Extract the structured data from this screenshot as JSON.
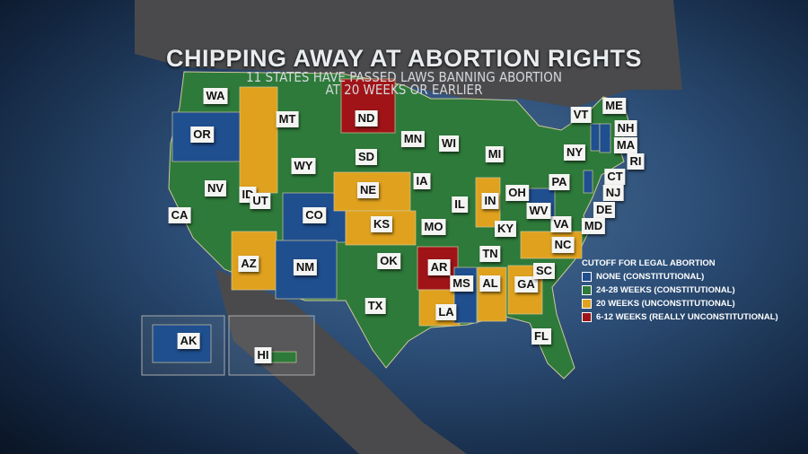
{
  "title": "CHIPPING AWAY AT ABORTION RIGHTS",
  "subtitle_lines": [
    "11 STATES HAVE PASSED LAWS BANNING ABORTION",
    "AT 20 WEEKS OR EARLIER"
  ],
  "legend": {
    "title": "CUTOFF FOR LEGAL ABORTION",
    "items": [
      {
        "key": "none",
        "label": "NONE (CONSTITUTIONAL)",
        "color": "#1f4f8f"
      },
      {
        "key": "w24",
        "label": "24-28 WEEKS (CONSTITUTIONAL)",
        "color": "#2e7a3a"
      },
      {
        "key": "w20",
        "label": "20 WEEKS (UNCONSTITUTIONAL)",
        "color": "#e0a21e"
      },
      {
        "key": "w6",
        "label": "6-12 WEEKS (REALLY UNCONSTITUTIONAL)",
        "color": "#a01418"
      }
    ]
  },
  "states": [
    {
      "abbr": "WA",
      "cat": "w24"
    },
    {
      "abbr": "OR",
      "cat": "none"
    },
    {
      "abbr": "CA",
      "cat": "w24"
    },
    {
      "abbr": "NV",
      "cat": "w24"
    },
    {
      "abbr": "ID",
      "cat": "w20"
    },
    {
      "abbr": "MT",
      "cat": "w24"
    },
    {
      "abbr": "WY",
      "cat": "w24"
    },
    {
      "abbr": "UT",
      "cat": "w24"
    },
    {
      "abbr": "AZ",
      "cat": "w20"
    },
    {
      "abbr": "CO",
      "cat": "none"
    },
    {
      "abbr": "NM",
      "cat": "none"
    },
    {
      "abbr": "ND",
      "cat": "w6"
    },
    {
      "abbr": "SD",
      "cat": "w24"
    },
    {
      "abbr": "NE",
      "cat": "w20"
    },
    {
      "abbr": "KS",
      "cat": "w20"
    },
    {
      "abbr": "OK",
      "cat": "w24"
    },
    {
      "abbr": "TX",
      "cat": "w24"
    },
    {
      "abbr": "MN",
      "cat": "w24"
    },
    {
      "abbr": "IA",
      "cat": "w24"
    },
    {
      "abbr": "MO",
      "cat": "w24"
    },
    {
      "abbr": "AR",
      "cat": "w6"
    },
    {
      "abbr": "LA",
      "cat": "w20"
    },
    {
      "abbr": "WI",
      "cat": "w24"
    },
    {
      "abbr": "IL",
      "cat": "w24"
    },
    {
      "abbr": "MI",
      "cat": "w24"
    },
    {
      "abbr": "IN",
      "cat": "w20"
    },
    {
      "abbr": "OH",
      "cat": "w24"
    },
    {
      "abbr": "KY",
      "cat": "w24"
    },
    {
      "abbr": "TN",
      "cat": "w24"
    },
    {
      "abbr": "MS",
      "cat": "none"
    },
    {
      "abbr": "AL",
      "cat": "w20"
    },
    {
      "abbr": "GA",
      "cat": "w20"
    },
    {
      "abbr": "FL",
      "cat": "w24"
    },
    {
      "abbr": "SC",
      "cat": "w24"
    },
    {
      "abbr": "NC",
      "cat": "w20"
    },
    {
      "abbr": "VA",
      "cat": "w24"
    },
    {
      "abbr": "WV",
      "cat": "none"
    },
    {
      "abbr": "PA",
      "cat": "w24"
    },
    {
      "abbr": "NY",
      "cat": "w24"
    },
    {
      "abbr": "VT",
      "cat": "none"
    },
    {
      "abbr": "NH",
      "cat": "none"
    },
    {
      "abbr": "ME",
      "cat": "w24"
    },
    {
      "abbr": "MA",
      "cat": "w24"
    },
    {
      "abbr": "RI",
      "cat": "w24"
    },
    {
      "abbr": "CT",
      "cat": "w24"
    },
    {
      "abbr": "NJ",
      "cat": "none"
    },
    {
      "abbr": "DE",
      "cat": "w24"
    },
    {
      "abbr": "MD",
      "cat": "w24"
    },
    {
      "abbr": "AK",
      "cat": "none"
    },
    {
      "abbr": "HI",
      "cat": "w24"
    }
  ]
}
